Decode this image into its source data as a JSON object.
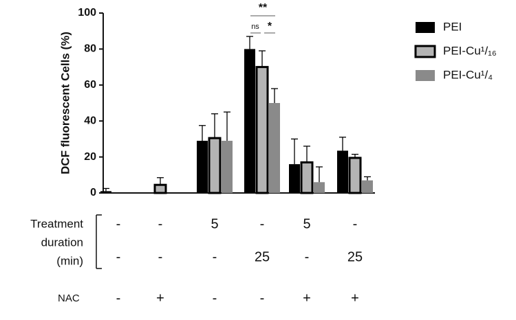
{
  "chart_data": {
    "type": "bar",
    "y_label": "DCF fluorescent Cells (%)",
    "categories": [
      null,
      null,
      null,
      null,
      null,
      null
    ],
    "ylim": [
      0,
      100
    ],
    "yticks": [
      0,
      20,
      40,
      60,
      80,
      100
    ],
    "series": [
      {
        "name": "PEI",
        "color": "#000000",
        "values": [
          1,
          0,
          29,
          80,
          16,
          23.5
        ],
        "errors": [
          1.5,
          null,
          8.5,
          7,
          14,
          7.5
        ]
      },
      {
        "name": "PEI-Cu¹/₁₆",
        "color": "#b4b4b4",
        "values": [
          0,
          4.5,
          30.5,
          70,
          17,
          19.5
        ],
        "errors": [
          null,
          4,
          13.5,
          9,
          9,
          2
        ]
      },
      {
        "name": "PEI-Cu¹/₄",
        "color": "#8a8a8a",
        "values": [
          0,
          0,
          29,
          50,
          6,
          7
        ],
        "errors": [
          null,
          null,
          16,
          8,
          8.5,
          2
        ]
      }
    ],
    "annotations": [
      "**",
      "ns",
      "*"
    ],
    "conditions": {
      "treatment_label": [
        "Treatment",
        "duration",
        "(min)"
      ],
      "treatment_row1": [
        "-",
        "-",
        "5",
        "-",
        "5",
        "-"
      ],
      "treatment_row2": [
        "-",
        "-",
        "-",
        "25",
        "-",
        "25"
      ],
      "nac_label": "NAC",
      "nac_row": [
        "-",
        "+",
        "-",
        "-",
        "+",
        "+"
      ]
    }
  }
}
